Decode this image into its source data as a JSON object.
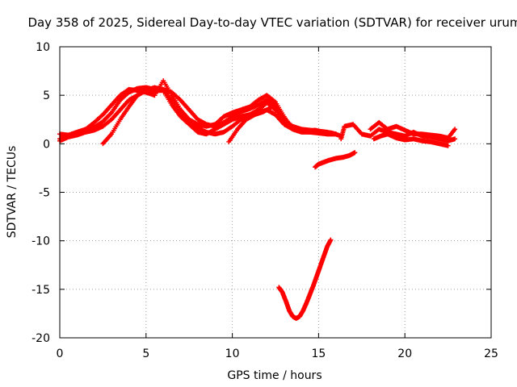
{
  "chart_data": {
    "type": "scatter",
    "title": "Day 358 of 2025, Sidereal Day-to-day VTEC variation (SDTVAR) for receiver urum",
    "xlabel": "GPS time / hours",
    "ylabel": "SDTVAR / TECUs",
    "xlim": [
      0,
      25
    ],
    "ylim": [
      -20,
      10
    ],
    "x_ticks": [
      0,
      5,
      10,
      15,
      20,
      25
    ],
    "y_ticks": [
      -20,
      -15,
      -10,
      -5,
      0,
      5,
      10
    ],
    "x_tick_labels": [
      "0",
      "5",
      "10",
      "15",
      "20",
      "25"
    ],
    "y_tick_labels": [
      "-20",
      "-15",
      "-10",
      "-5",
      "0",
      "5",
      "10"
    ],
    "grid": true,
    "marker": "plus",
    "color": "#ff0000",
    "series": [
      {
        "name": "track-a",
        "x": [
          0,
          0.5,
          1,
          1.5,
          2,
          2.5,
          3,
          3.5,
          4,
          4.5,
          5,
          5.5,
          6,
          6.5,
          7,
          7.5,
          8,
          8.5,
          9,
          9.5,
          10,
          10.5,
          11,
          11.5,
          12,
          12.5,
          13,
          13.5,
          14,
          14.5,
          15,
          15.5,
          16
        ],
        "y": [
          0.5,
          0.8,
          1.0,
          1.3,
          1.7,
          2.3,
          3.2,
          4.5,
          5.3,
          5.7,
          5.8,
          5.6,
          5.6,
          5.3,
          4.5,
          3.5,
          2.5,
          2.0,
          1.8,
          2.2,
          2.8,
          3.3,
          3.6,
          4.0,
          4.5,
          4.0,
          2.5,
          1.8,
          1.5,
          1.4,
          1.3,
          1.2,
          1.0
        ]
      },
      {
        "name": "track-b",
        "x": [
          0,
          0.5,
          1,
          1.5,
          2,
          2.5,
          3,
          3.5,
          4,
          4.5,
          5,
          5.5,
          6,
          6.5,
          7,
          7.5,
          8,
          8.5,
          9,
          9.5,
          10,
          10.5,
          11,
          11.5,
          12,
          12.5,
          13,
          13.5,
          14,
          14.5,
          15,
          15.5,
          16
        ],
        "y": [
          1.0,
          0.9,
          1.2,
          1.5,
          2.2,
          3.0,
          4.0,
          5.0,
          5.6,
          5.5,
          5.3,
          5.0,
          6.5,
          5.0,
          3.5,
          2.5,
          2.0,
          1.8,
          2.0,
          2.8,
          3.2,
          3.5,
          3.8,
          4.5,
          5.0,
          4.3,
          2.8,
          1.5,
          1.2,
          1.2,
          1.2,
          1.0,
          1.0
        ]
      },
      {
        "name": "track-c",
        "x": [
          0,
          0.5,
          1,
          1.5,
          2,
          2.5,
          3,
          3.5,
          4,
          4.5,
          5,
          5.5,
          6,
          6.5,
          7,
          7.5,
          8,
          8.5,
          9,
          9.5,
          10,
          10.5,
          11,
          11.5,
          12,
          12.5,
          13,
          13.5,
          14,
          14.5,
          15,
          15.5,
          16
        ],
        "y": [
          0.3,
          0.7,
          0.9,
          1.2,
          1.4,
          1.8,
          2.5,
          3.5,
          4.5,
          5.0,
          5.5,
          5.8,
          5.5,
          4.5,
          3.0,
          2.2,
          1.6,
          1.2,
          1.0,
          1.2,
          1.8,
          2.5,
          3.0,
          3.5,
          4.2,
          3.8,
          2.2,
          1.6,
          1.3,
          1.2,
          1.1,
          1.0,
          1.0
        ]
      },
      {
        "name": "track-d",
        "x": [
          2.5,
          3,
          3.5,
          4,
          4.5,
          5,
          5.5,
          6,
          6.5,
          7,
          7.5,
          8,
          8.5,
          9,
          9.5,
          10,
          10.5,
          11,
          11.5,
          12,
          12.5,
          13,
          13.5
        ],
        "y": [
          0,
          1.0,
          2.5,
          3.8,
          5.0,
          5.5,
          5.5,
          5.5,
          4.0,
          2.8,
          2.0,
          1.2,
          1.0,
          1.5,
          2.0,
          2.5,
          2.8,
          3.0,
          3.2,
          3.5,
          3.0,
          2.0,
          1.5
        ]
      },
      {
        "name": "track-e",
        "x": [
          9.8,
          10.3,
          10.8,
          11.3,
          11.8,
          12.3,
          12.8,
          13.3,
          13.8,
          14.3,
          14.8,
          15.3,
          15.8,
          16.3
        ],
        "y": [
          0.2,
          1.5,
          2.5,
          3.0,
          3.3,
          3.8,
          3.0,
          1.8,
          1.4,
          1.3,
          1.4,
          1.2,
          1.1,
          0.8
        ]
      },
      {
        "name": "track-f",
        "x": [
          16.3,
          16.5,
          17,
          17.5,
          18,
          18.5,
          19,
          19.5,
          20,
          20.5,
          21,
          21.5,
          22,
          22.5,
          22.9
        ],
        "y": [
          0.5,
          1.8,
          2.0,
          1.0,
          0.8,
          1.5,
          1.2,
          1.0,
          0.8,
          1.2,
          0.8,
          0.7,
          0.5,
          0.3,
          0.5
        ]
      },
      {
        "name": "track-g",
        "x": [
          18,
          18.5,
          19,
          19.5,
          20,
          20.5,
          21,
          21.5,
          22,
          22.5,
          22.9
        ],
        "y": [
          1.5,
          2.2,
          1.5,
          1.8,
          1.4,
          1.0,
          1.0,
          0.9,
          0.8,
          0.6,
          1.5
        ]
      },
      {
        "name": "track-h",
        "x": [
          18.2,
          18.6,
          19,
          19.5,
          20,
          20.5,
          21,
          21.5,
          22,
          22.5
        ],
        "y": [
          0.5,
          0.8,
          1.0,
          0.6,
          0.4,
          0.5,
          0.3,
          0.2,
          0,
          -0.2
        ]
      },
      {
        "name": "track-i",
        "x": [
          14.8,
          15,
          15.3,
          15.6,
          16,
          16.4,
          16.8,
          17.1
        ],
        "y": [
          -2.4,
          -2.1,
          -1.9,
          -1.7,
          -1.5,
          -1.4,
          -1.2,
          -0.9
        ]
      },
      {
        "name": "track-j",
        "x": [
          12.7,
          12.9,
          13.1,
          13.3,
          13.5,
          13.7,
          13.9,
          14.1,
          14.3,
          14.5,
          14.7,
          14.9,
          15.1,
          15.3,
          15.5,
          15.7
        ],
        "y": [
          -14.8,
          -15.3,
          -16.2,
          -17.2,
          -17.8,
          -18.0,
          -17.8,
          -17.2,
          -16.4,
          -15.5,
          -14.6,
          -13.6,
          -12.6,
          -11.6,
          -10.6,
          -9.9
        ]
      }
    ]
  }
}
